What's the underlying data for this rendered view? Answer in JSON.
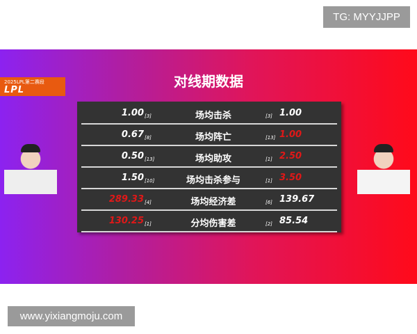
{
  "watermark_top": "TG: MYYJJPP",
  "watermark_bottom": "www.yixiangmoju.com",
  "logo": {
    "line1": "2025LPL第二赛段",
    "line2": "LPL"
  },
  "title": "对线期数据",
  "colors": {
    "highlight": "#e01818",
    "gradient_left": "#8c22f0",
    "gradient_right": "#ff0a1a"
  },
  "rows": [
    {
      "stat": "场均击杀",
      "left": "1.00",
      "left_rank": "[3]",
      "right_rank": "[3]",
      "right": "1.00",
      "left_red": false,
      "right_red": false
    },
    {
      "stat": "场均阵亡",
      "left": "0.67",
      "left_rank": "[8]",
      "right_rank": "[13]",
      "right": "1.00",
      "left_red": false,
      "right_red": true
    },
    {
      "stat": "场均助攻",
      "left": "0.50",
      "left_rank": "[13]",
      "right_rank": "[1]",
      "right": "2.50",
      "left_red": false,
      "right_red": true
    },
    {
      "stat": "场均击杀参与",
      "left": "1.50",
      "left_rank": "[10]",
      "right_rank": "[1]",
      "right": "3.50",
      "left_red": false,
      "right_red": true
    },
    {
      "stat": "场均经济差",
      "left": "289.33",
      "left_rank": "[4]",
      "right_rank": "[6]",
      "right": "139.67",
      "left_red": true,
      "right_red": false
    },
    {
      "stat": "分均伤害差",
      "left": "130.25",
      "left_rank": "[1]",
      "right_rank": "[2]",
      "right": "85.54",
      "left_red": true,
      "right_red": false
    }
  ]
}
